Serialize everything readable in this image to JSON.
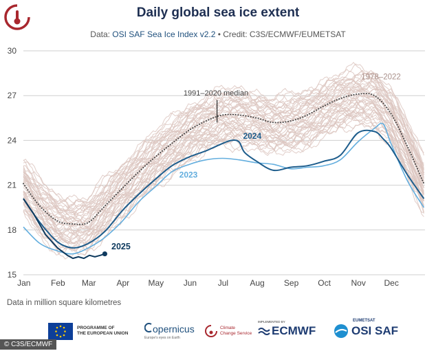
{
  "header": {
    "title": "Daily global sea ice extent",
    "subtitle_prefix": "Data: ",
    "subtitle_source": "OSI SAF Sea Ice Index v2.2",
    "subtitle_credit": " • Credit: C3S/ECMWF/EUMETSAT"
  },
  "units_note": "Data in million square kilometres",
  "credit_badge": "© C3S/ECMWF",
  "footer": {
    "eu_line1": "PROGRAMME OF",
    "eu_line2": "THE EUROPEAN UNION",
    "copernicus": "opernicus",
    "copernicus_tagline": "Europe's eyes on Earth",
    "c3s_line1": "Climate",
    "c3s_line2": "Change Service",
    "ecmwf_pre": "IMPLEMENTED BY",
    "ecmwf": "ECMWF",
    "osi_pre": "EUMETSAT",
    "osi": "OSI SAF"
  },
  "colors": {
    "title": "#1e2f52",
    "range": "#dcc5c0",
    "median": "#444444",
    "y2025": "#0e3a5e",
    "y2024": "#1e5d8c",
    "y2023": "#63aede"
  },
  "chart_data": {
    "type": "line",
    "title": "Daily global sea ice extent",
    "ylabel": "Data in million square kilometres",
    "ylim": [
      15,
      30
    ],
    "yticks": [
      "15",
      "18",
      "21",
      "24",
      "27",
      "30"
    ],
    "months": [
      "Jan",
      "Feb",
      "Mar",
      "Apr",
      "May",
      "Jun",
      "Jul",
      "Aug",
      "Sep",
      "Oct",
      "Nov",
      "Dec"
    ],
    "annotations": {
      "range_label": "1978–2022",
      "median_label": "1991–2020 median",
      "label_2024": "2024",
      "label_2023": "2023",
      "label_2025": "2025"
    },
    "series": [
      {
        "name": "1991–2020 median",
        "style": "dotted",
        "x": [
          0,
          15,
          31,
          45,
          59,
          74,
          90,
          105,
          120,
          135,
          151,
          166,
          181,
          196,
          212,
          227,
          243,
          258,
          273,
          288,
          304,
          319,
          334,
          349,
          364
        ],
        "values": [
          21.1,
          19.6,
          18.6,
          18.4,
          18.5,
          19.6,
          20.8,
          21.9,
          22.9,
          23.8,
          24.7,
          25.3,
          25.7,
          25.7,
          25.5,
          25.2,
          25.3,
          25.7,
          26.3,
          26.8,
          27.1,
          27.0,
          25.8,
          23.6,
          21.1
        ]
      },
      {
        "name": "2024",
        "x": [
          0,
          15,
          31,
          45,
          59,
          74,
          90,
          105,
          120,
          135,
          151,
          166,
          178,
          189,
          196,
          201,
          212,
          227,
          243,
          258,
          273,
          288,
          304,
          319,
          327,
          334,
          349,
          364
        ],
        "values": [
          20.1,
          18.5,
          17.2,
          16.8,
          17.1,
          17.9,
          19.3,
          20.4,
          21.4,
          22.3,
          22.9,
          23.3,
          23.7,
          24.0,
          23.9,
          23.2,
          22.6,
          22.0,
          22.2,
          22.3,
          22.6,
          23.0,
          24.5,
          24.6,
          24.1,
          23.5,
          21.7,
          20.1
        ]
      },
      {
        "name": "2023",
        "x": [
          0,
          15,
          31,
          45,
          59,
          74,
          90,
          105,
          120,
          135,
          151,
          166,
          181,
          196,
          212,
          227,
          243,
          258,
          273,
          288,
          304,
          319,
          327,
          334,
          349,
          364
        ],
        "values": [
          18.2,
          17.1,
          16.6,
          16.4,
          16.8,
          17.5,
          18.6,
          19.9,
          20.9,
          21.9,
          22.4,
          22.7,
          22.8,
          22.7,
          22.5,
          22.4,
          22.1,
          22.2,
          22.3,
          22.7,
          23.9,
          24.8,
          25.1,
          23.8,
          21.3,
          19.5
        ]
      },
      {
        "name": "2025",
        "x": [
          0,
          10,
          20,
          31,
          40,
          45,
          50,
          55,
          60,
          65,
          70,
          74
        ],
        "values": [
          20.1,
          19.0,
          17.7,
          16.8,
          16.3,
          16.1,
          16.2,
          16.1,
          16.3,
          16.2,
          16.3,
          16.4
        ]
      }
    ]
  }
}
